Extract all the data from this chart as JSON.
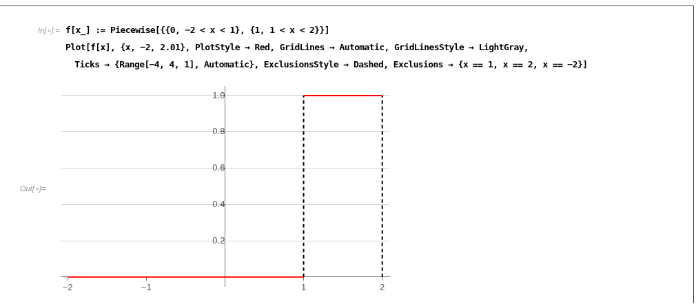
{
  "chart_data": {
    "type": "line",
    "annotations": [
      "In[∘]:=",
      "f[x_] := Piecewise[{{0, −2 < x < 1}, {1, 1 < x < 2}}]",
      "Plot[f[x], {x, −2, 2.01}, PlotStyle → Red, GridLines → Automatic, GridLinesStyle → LightGray,",
      " Ticks → {Range[−4, 4, 1], Automatic}, ExclusionsStyle → Dashed, Exclusions → {x ⩵ 1, x ⩵ 2, x ⩵ −2}]",
      "Out[∘]="
    ],
    "series": [
      {
        "color": "#ff0000",
        "line_style": "solid",
        "x": [
          -2,
          1
        ],
        "values": [
          0,
          0
        ]
      },
      {
        "color": "#ff0000",
        "line_style": "solid",
        "x": [
          1,
          2
        ],
        "values": [
          1,
          1
        ]
      },
      {
        "color": "#000000",
        "line_style": "dashed",
        "x": [
          1,
          1
        ],
        "values": [
          0,
          1
        ]
      },
      {
        "color": "#000000",
        "line_style": "dashed",
        "x": [
          2,
          2
        ],
        "values": [
          0,
          1
        ]
      }
    ],
    "xlim": [
      -2.08,
      2.09
    ],
    "ylim": [
      -0.05,
      1.05
    ],
    "xticks": [
      {
        "value": -2,
        "label": "−2"
      },
      {
        "value": -1,
        "label": "−1"
      },
      {
        "value": 1,
        "label": "1"
      },
      {
        "value": 2,
        "label": "2"
      }
    ],
    "yticks": [
      {
        "value": 0.2,
        "label": "0.2"
      },
      {
        "value": 0.4,
        "label": "0.4"
      },
      {
        "value": 0.6,
        "label": "0.6"
      },
      {
        "value": 0.8,
        "label": "0.8"
      },
      {
        "value": 1,
        "label": "1.0"
      }
    ],
    "grid": "y",
    "marker": "none",
    "legend": false
  }
}
